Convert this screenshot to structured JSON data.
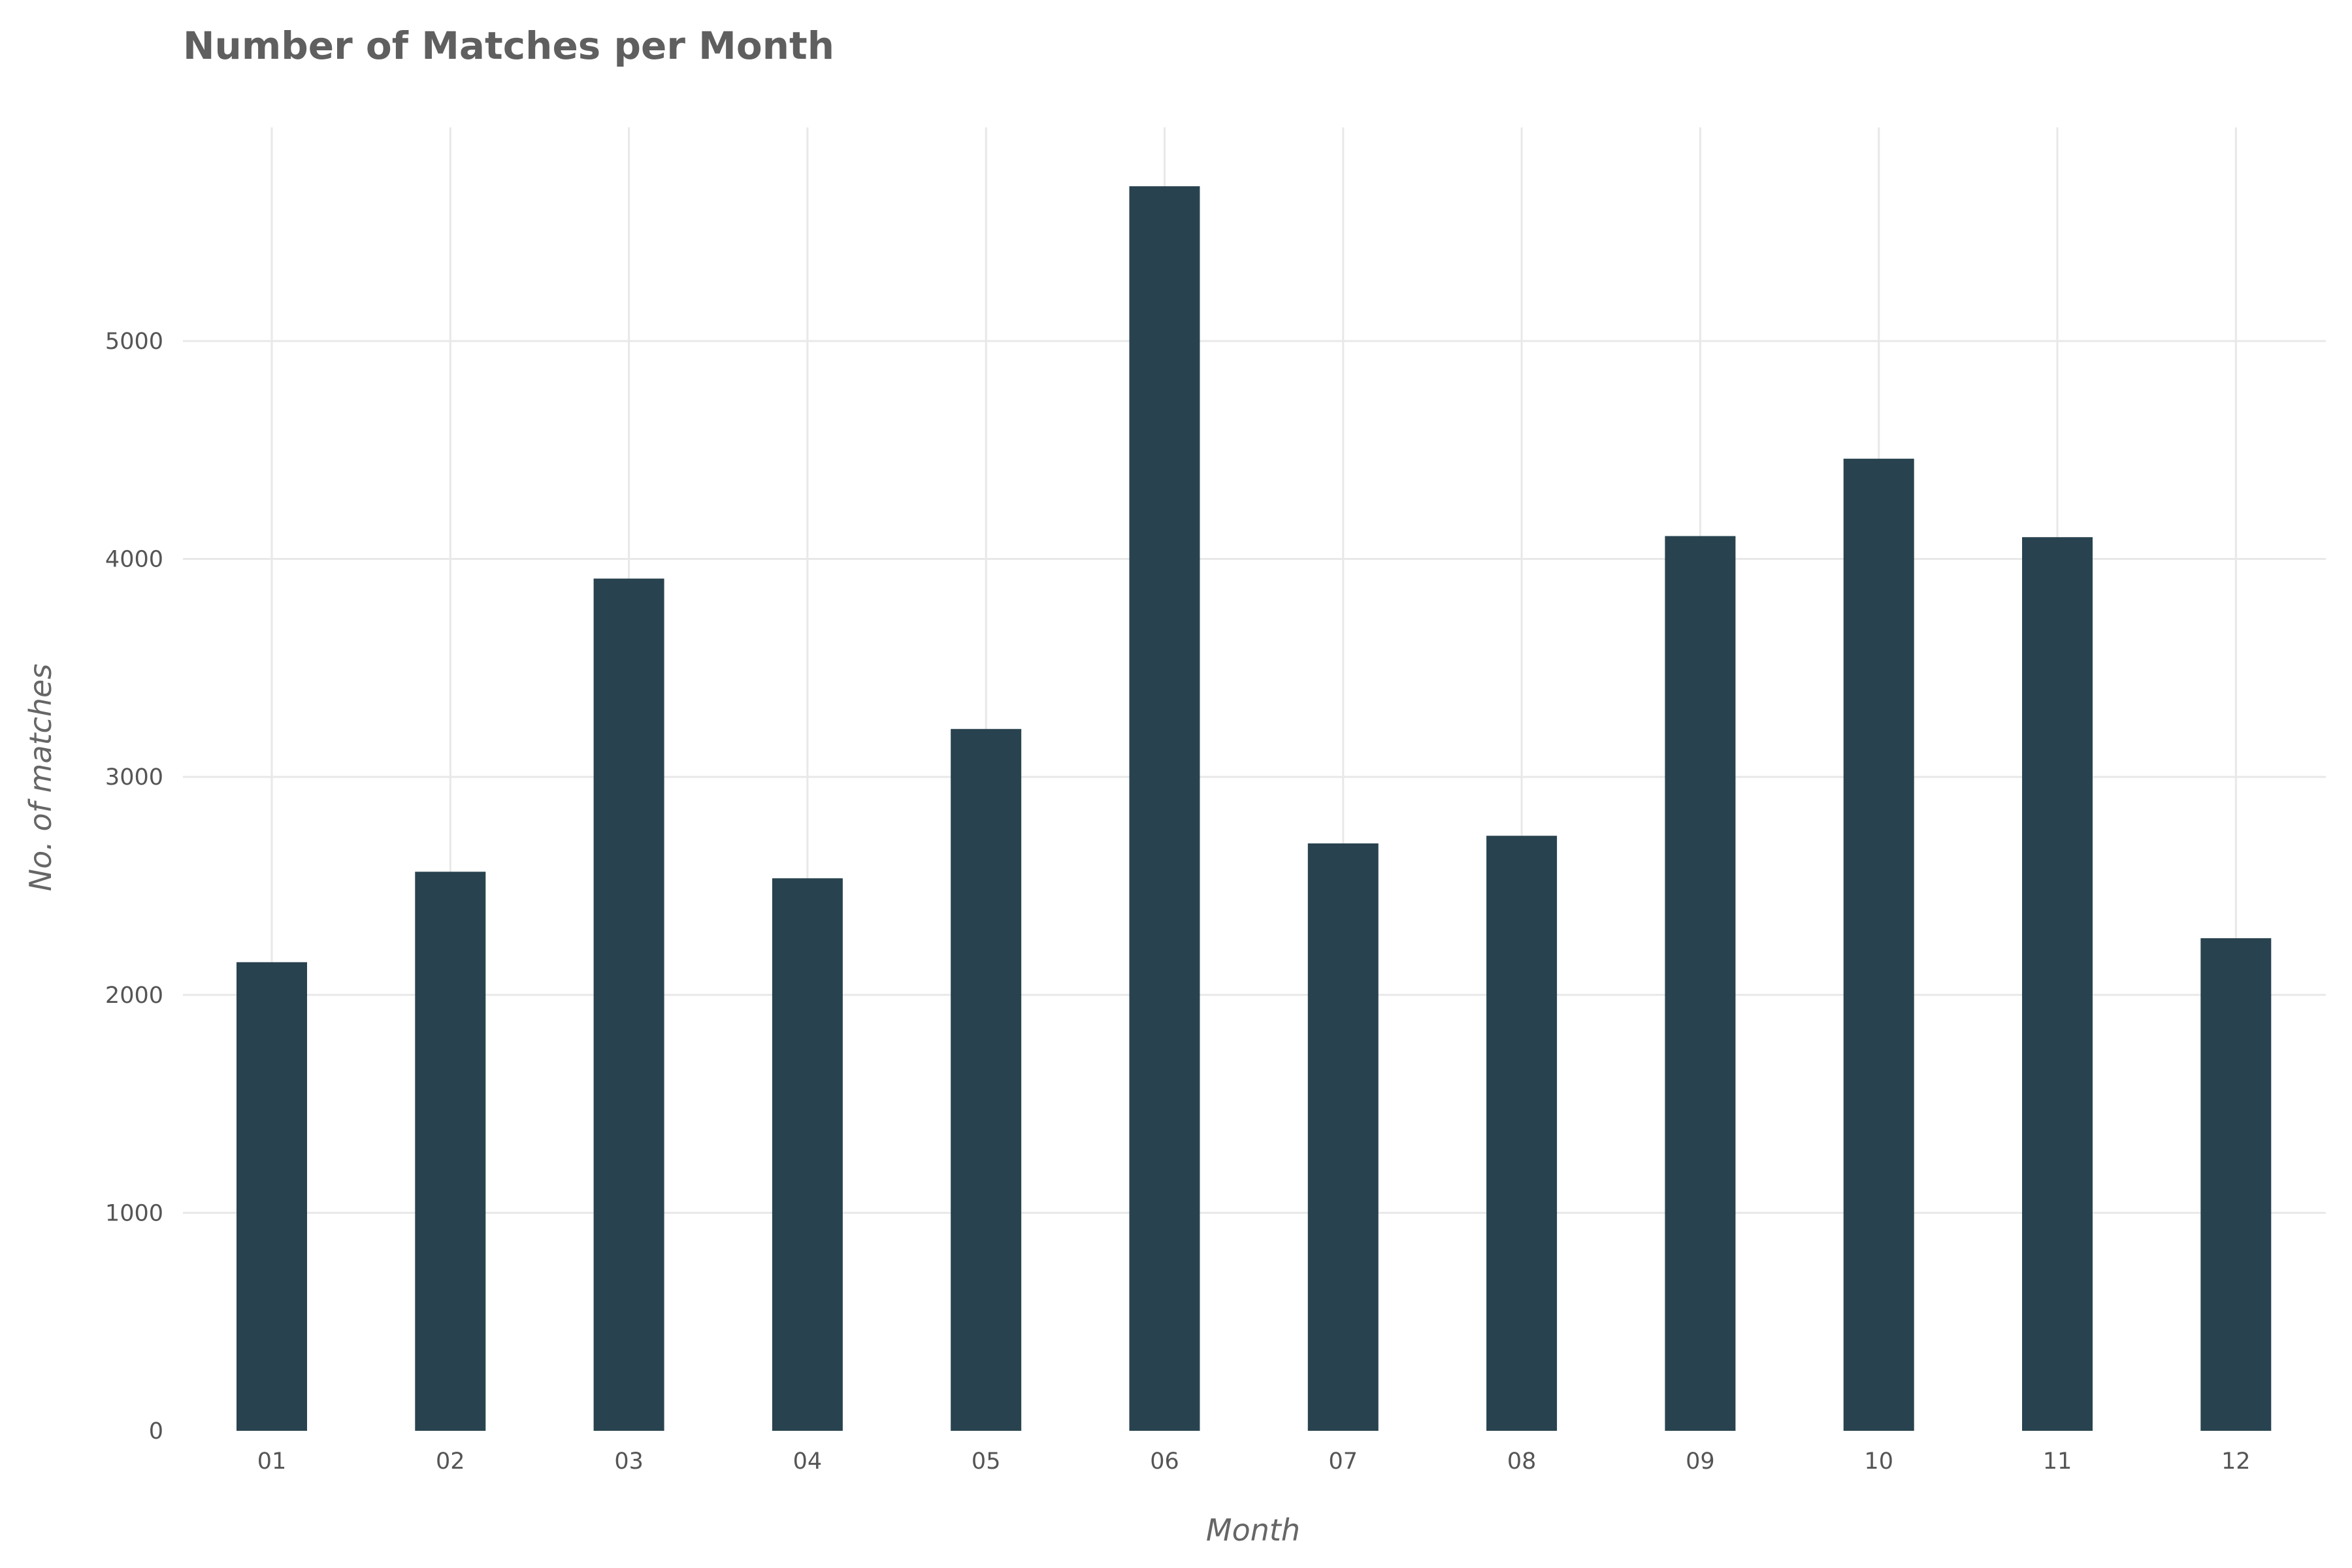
{
  "chart_data": {
    "type": "bar",
    "title": "Number of Matches per Month",
    "xlabel": "Month",
    "ylabel": "No. of matches",
    "categories": [
      "01",
      "02",
      "03",
      "04",
      "05",
      "06",
      "07",
      "08",
      "09",
      "10",
      "11",
      "12"
    ],
    "values": [
      2150,
      2565,
      3910,
      2535,
      3220,
      5710,
      2695,
      2730,
      4105,
      4460,
      4100,
      2260
    ],
    "ylim": [
      0,
      5980
    ],
    "yticks": [
      0,
      1000,
      2000,
      3000,
      4000,
      5000
    ],
    "grid": true,
    "legend": "none",
    "bar_color": "#28434f"
  }
}
